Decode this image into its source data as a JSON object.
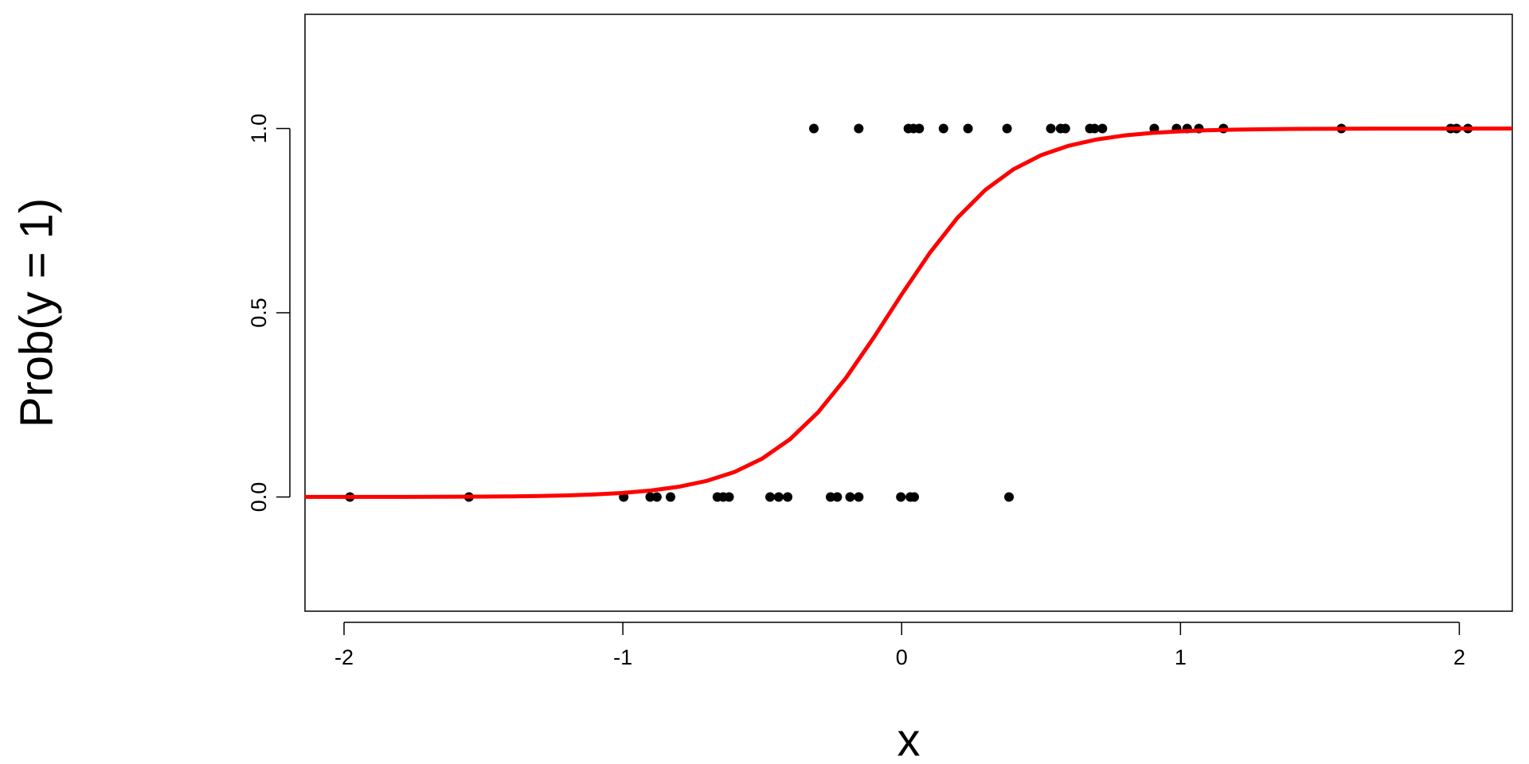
{
  "chart_data": {
    "type": "scatter",
    "x_label": "x",
    "y_label": "Prob(y = 1)",
    "xlim": [
      -2.14,
      2.19
    ],
    "ylim": [
      -0.31,
      1.31
    ],
    "xticks": [
      -2,
      -1,
      0,
      1,
      2
    ],
    "yticks": [
      {
        "value": 0,
        "label": "0.0"
      },
      {
        "value": 0.5,
        "label": "0.5"
      },
      {
        "value": 1,
        "label": "1.0"
      }
    ],
    "grid": false,
    "series": [
      {
        "type": "scatter",
        "color": "#000000",
        "x": [
          -0.315,
          -0.154,
          0.024,
          0.042,
          0.063,
          0.15,
          0.238,
          0.378,
          0.535,
          0.57,
          0.587,
          0.675,
          0.692,
          0.72,
          0.906,
          0.986,
          1.024,
          1.066,
          1.154,
          1.577,
          1.969,
          1.99,
          2.031,
          -1.979,
          -1.552,
          -0.997,
          -0.902,
          -0.878,
          -0.829,
          -0.661,
          -0.64,
          -0.619,
          -0.472,
          -0.441,
          -0.409,
          -0.255,
          -0.231,
          -0.185,
          -0.154,
          -0.003,
          0.031,
          0.045,
          0.385
        ],
        "values": [
          1,
          1,
          1,
          1,
          1,
          1,
          1,
          1,
          1,
          1,
          1,
          1,
          1,
          1,
          1,
          1,
          1,
          1,
          1,
          1,
          1,
          1,
          1,
          0,
          0,
          0,
          0,
          0,
          0,
          0,
          0,
          0,
          0,
          0,
          0,
          0,
          0,
          0,
          0,
          0,
          0,
          0,
          0
        ]
      },
      {
        "type": "line",
        "color": "#ff0000",
        "x": [
          -2.14,
          -2.0,
          -1.9,
          -1.8,
          -1.7,
          -1.6,
          -1.5,
          -1.4,
          -1.3,
          -1.2,
          -1.1,
          -1.0,
          -0.9,
          -0.8,
          -0.7,
          -0.6,
          -0.5,
          -0.4,
          -0.3,
          -0.2,
          -0.1,
          0,
          0.1,
          0.2,
          0.3,
          0.4,
          0.5,
          0.6,
          0.7,
          0.8,
          0.9,
          1.0,
          1.1,
          1.2,
          1.3,
          1.4,
          1.5,
          1.6,
          1.7,
          1.8,
          1.9,
          2.0,
          2.1,
          2.19
        ],
        "values": [
          0.0001,
          0.0001,
          0.0002,
          0.0003,
          0.0004,
          0.0007,
          0.0011,
          0.0017,
          0.0027,
          0.0043,
          0.0069,
          0.011,
          0.0175,
          0.0277,
          0.0435,
          0.0678,
          0.1043,
          0.157,
          0.2297,
          0.323,
          0.4329,
          0.5498,
          0.6615,
          0.7577,
          0.8334,
          0.8889,
          0.9276,
          0.9535,
          0.9704,
          0.9813,
          0.9882,
          0.9926,
          0.9954,
          0.9971,
          0.9982,
          0.9989,
          0.9993,
          0.9996,
          0.9997,
          0.9998,
          0.9999,
          0.9999,
          1.0,
          1.0
        ]
      }
    ]
  }
}
